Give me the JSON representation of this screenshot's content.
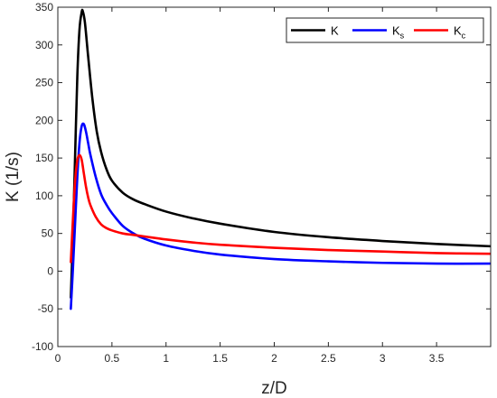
{
  "chart_data": {
    "type": "line",
    "title": "",
    "xlabel": "z/D",
    "ylabel": "K (1/s)",
    "xlim": [
      0,
      4
    ],
    "ylim": [
      -100,
      350
    ],
    "xticks": [
      0,
      0.5,
      1,
      1.5,
      2,
      2.5,
      3,
      3.5
    ],
    "xtick_labels": [
      "0",
      "0.5",
      "1",
      "1.5",
      "2",
      "2.5",
      "3",
      "3.5"
    ],
    "yticks": [
      -100,
      -50,
      0,
      50,
      100,
      150,
      200,
      250,
      300,
      350
    ],
    "ytick_labels": [
      "-100",
      "-50",
      "0",
      "50",
      "100",
      "150",
      "200",
      "250",
      "300",
      "350"
    ],
    "grid": false,
    "legend_position": "top-right",
    "series": [
      {
        "name": "K",
        "legend_main": "K",
        "legend_sub": "",
        "color": "#000000",
        "x": [
          0.12,
          0.14,
          0.16,
          0.18,
          0.2,
          0.22,
          0.23,
          0.25,
          0.28,
          0.32,
          0.36,
          0.4,
          0.45,
          0.5,
          0.6,
          0.7,
          0.8,
          1.0,
          1.25,
          1.5,
          2.0,
          2.5,
          3.0,
          3.5,
          4.0
        ],
        "y": [
          -35,
          50,
          155,
          258,
          320,
          343,
          345,
          330,
          285,
          228,
          185,
          158,
          135,
          120,
          104,
          95,
          89,
          79,
          70,
          63,
          52,
          45,
          40,
          36,
          33
        ]
      },
      {
        "name": "Ks",
        "legend_main": "K",
        "legend_sub": "s",
        "color": "#0000ff",
        "x": [
          0.12,
          0.14,
          0.16,
          0.18,
          0.2,
          0.22,
          0.24,
          0.26,
          0.28,
          0.3,
          0.35,
          0.4,
          0.45,
          0.5,
          0.6,
          0.7,
          0.8,
          1.0,
          1.25,
          1.5,
          2.0,
          2.5,
          3.0,
          3.5,
          4.0
        ],
        "y": [
          -50,
          5,
          65,
          125,
          170,
          192,
          195,
          185,
          170,
          155,
          125,
          102,
          88,
          77,
          60,
          50,
          43,
          34,
          27,
          22,
          16,
          13,
          11,
          10,
          10
        ]
      },
      {
        "name": "Kc",
        "legend_main": "K",
        "legend_sub": "c",
        "color": "#ff0000",
        "x": [
          0.12,
          0.14,
          0.16,
          0.18,
          0.2,
          0.22,
          0.24,
          0.26,
          0.28,
          0.3,
          0.35,
          0.4,
          0.45,
          0.5,
          0.6,
          0.7,
          0.8,
          1.0,
          1.25,
          1.5,
          2.0,
          2.5,
          3.0,
          3.5,
          4.0
        ],
        "y": [
          12,
          70,
          120,
          147,
          154,
          148,
          130,
          112,
          98,
          88,
          72,
          62,
          57,
          54,
          50,
          48,
          46,
          42,
          38,
          35,
          31,
          28,
          26,
          24,
          23
        ]
      }
    ]
  }
}
